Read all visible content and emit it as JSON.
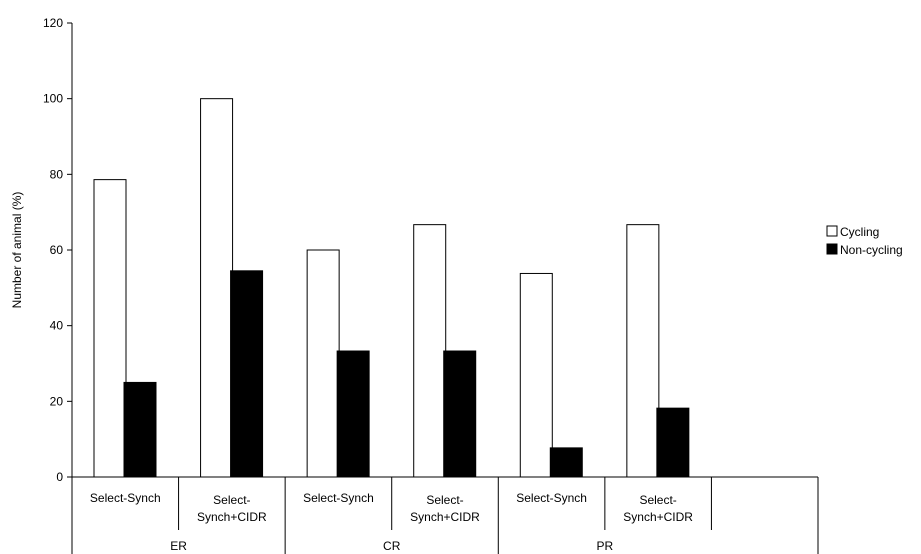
{
  "chart_data": {
    "type": "bar",
    "title": "",
    "xlabel": "",
    "ylabel": "Number of animal (%)",
    "ylim": [
      0,
      120
    ],
    "yticks": [
      0,
      20,
      40,
      60,
      80,
      100,
      120
    ],
    "grid": false,
    "legend_position": "right",
    "categories": [
      "Select-Synch",
      "Select-\nSynch+CIDR",
      "Select-Synch",
      "Select-\nSynch+CIDR",
      "Select-Synch",
      "Select-\nSynch+CIDR",
      ""
    ],
    "groups": [
      {
        "label": "ER",
        "span": 2
      },
      {
        "label": "CR",
        "span": 2
      },
      {
        "label": "PR",
        "span": 3
      }
    ],
    "series": [
      {
        "name": "Cycling",
        "color": "#ffffff",
        "values": [
          78.6,
          100,
          60,
          66.7,
          53.8,
          66.7,
          null
        ]
      },
      {
        "name": "Non-cycling",
        "color": "#000000",
        "values": [
          25,
          54.5,
          33.3,
          33.3,
          7.7,
          18.2,
          null
        ]
      }
    ]
  }
}
